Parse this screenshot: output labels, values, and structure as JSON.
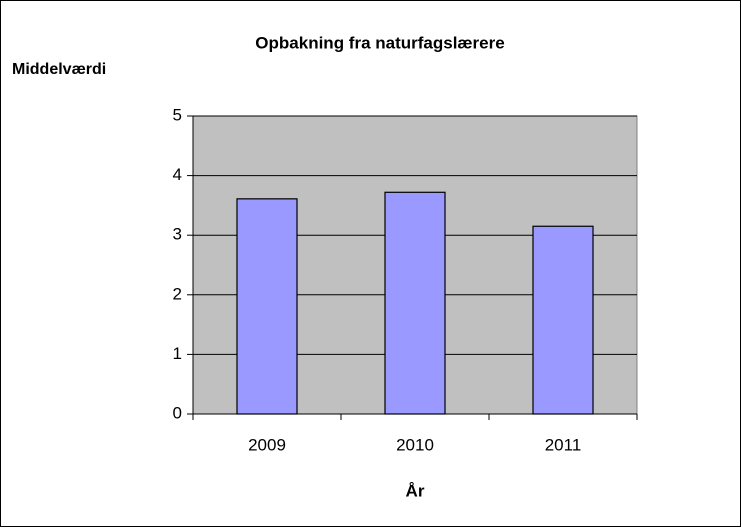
{
  "chart_data": {
    "type": "bar",
    "title": "Opbakning fra naturfagslærere",
    "y_label": "Middelværdi",
    "x_label": "År",
    "categories": [
      "2009",
      "2010",
      "2011"
    ],
    "values": [
      3.61,
      3.72,
      3.15
    ],
    "color": "#9999ff",
    "ylim": [
      0,
      5
    ],
    "yticks": [
      0,
      1,
      2,
      3,
      4,
      5
    ],
    "grid": true
  }
}
